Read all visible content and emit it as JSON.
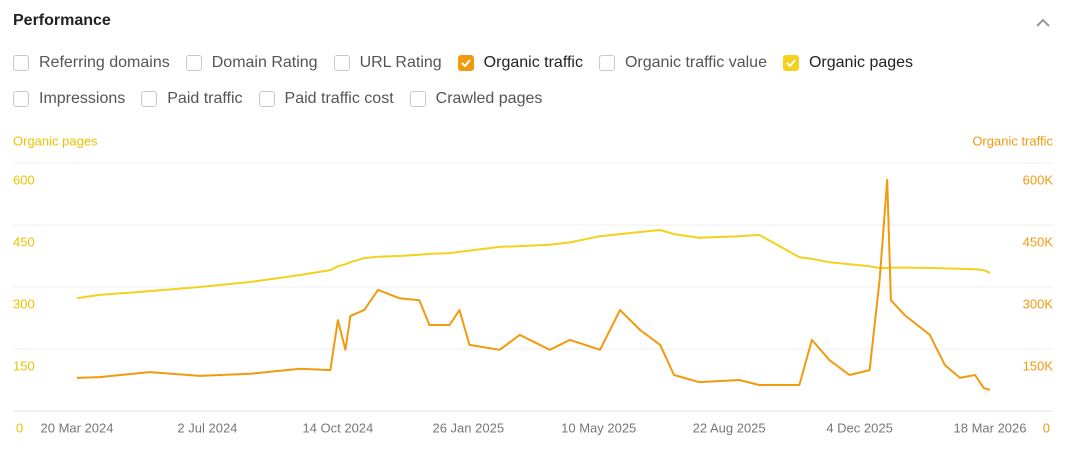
{
  "header": {
    "title": "Performance"
  },
  "metrics": [
    [
      {
        "label": "Referring domains",
        "checked": false
      },
      {
        "label": "Domain Rating",
        "checked": false
      },
      {
        "label": "URL Rating",
        "checked": false
      },
      {
        "label": "Organic traffic",
        "checked": true,
        "color": "#f29a0e"
      },
      {
        "label": "Organic traffic value",
        "checked": false
      },
      {
        "label": "Organic pages",
        "checked": true,
        "color": "#f2d21c"
      }
    ],
    [
      {
        "label": "Impressions",
        "checked": false
      },
      {
        "label": "Paid traffic",
        "checked": false
      },
      {
        "label": "Paid traffic cost",
        "checked": false
      },
      {
        "label": "Crawled pages",
        "checked": false
      }
    ]
  ],
  "chart_data": {
    "type": "line",
    "ylabel": "Organic pages",
    "y2label": "Organic traffic",
    "ylabel_color": "#e8c400",
    "y2label_color": "#f29a0e",
    "grid": true,
    "xlim": [
      "20 Mar 2024",
      "18 Mar 2026"
    ],
    "xticks": [
      "20 Mar 2024",
      "2 Jul 2024",
      "14 Oct 2024",
      "26 Jan 2025",
      "10 May 2025",
      "22 Aug 2025",
      "4 Dec 2025",
      "18 Mar 2026"
    ],
    "ylim": [
      0,
      600
    ],
    "yticks": [
      0,
      150,
      300,
      450,
      600
    ],
    "y2lim": [
      0,
      600000
    ],
    "y2ticks": [
      0,
      {
        "value": 150000,
        "label": "150K"
      },
      {
        "value": 300000,
        "label": "300K"
      },
      {
        "value": 450000,
        "label": "450K"
      },
      {
        "value": 600000,
        "label": "600K"
      }
    ],
    "x": [
      "20 Mar 2024",
      "7 Apr 2024",
      "17 May 2024",
      "26 Jun 2024",
      "5 Aug 2024",
      "14 Sep 2024",
      "8 Oct 2024",
      "14 Oct 2024",
      "20 Oct 2024",
      "24 Oct 2024",
      "4 Nov 2024",
      "15 Nov 2024",
      "2 Dec 2024",
      "18 Dec 2024",
      "26 Dec 2024",
      "11 Jan 2025",
      "19 Jan 2025",
      "27 Jan 2025",
      "20 Feb 2025",
      "8 Mar 2025",
      "1 Apr 2025",
      "17 Apr 2025",
      "11 May 2025",
      "27 May 2025",
      "12 Jun 2025",
      "28 Jun 2025",
      "9 Jul 2025",
      "29 Jul 2025",
      "30 Aug 2025",
      "15 Sep 2025",
      "17 Oct 2025",
      "27 Oct 2025",
      "10 Nov 2025",
      "26 Nov 2025",
      "12 Dec 2025",
      "20 Dec 2025",
      "26 Dec 2025",
      "29 Dec 2025",
      "9 Jan 2026",
      "29 Jan 2026",
      "10 Feb 2026",
      "22 Feb 2026",
      "6 Mar 2026",
      "13 Mar 2026",
      "18 Mar 2026"
    ],
    "series": [
      {
        "name": "Organic pages",
        "color": "#f2d21c",
        "values": [
          273,
          281,
          290,
          300,
          312,
          329,
          341,
          350,
          355,
          360,
          370,
          373,
          375,
          378,
          380,
          382,
          385,
          388,
          397,
          399,
          402,
          408,
          423,
          428,
          433,
          438,
          428,
          419,
          423,
          426,
          372,
          368,
          360,
          355,
          350,
          346,
          346,
          347,
          347,
          346,
          345,
          344,
          343,
          341,
          334
        ]
      },
      {
        "name": "Organic traffic",
        "color": "#f29a0e",
        "axis": "y2",
        "values": [
          80000,
          82000,
          94000,
          85000,
          90000,
          102000,
          99000,
          220000,
          148000,
          230000,
          244000,
          293000,
          273000,
          268000,
          208000,
          208000,
          244000,
          160000,
          148000,
          184000,
          148000,
          172000,
          148000,
          244000,
          196000,
          160000,
          87000,
          70000,
          75000,
          63000,
          63000,
          172000,
          123000,
          87000,
          99000,
          317000,
          559000,
          268000,
          232000,
          184000,
          111000,
          80000,
          87000,
          56000,
          51000
        ]
      }
    ]
  }
}
